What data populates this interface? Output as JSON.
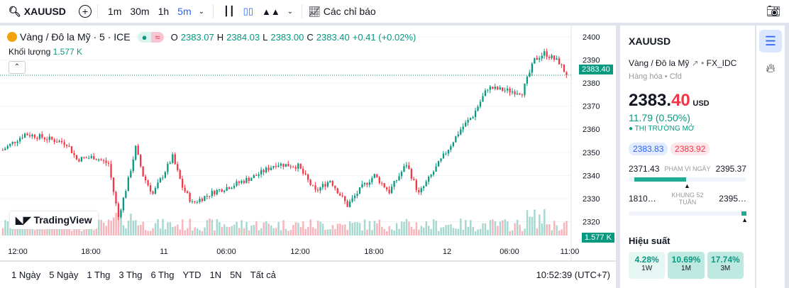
{
  "toolbar": {
    "symbol": "XAUUSD",
    "timeframes": [
      "1m",
      "30m",
      "1h",
      "5m"
    ],
    "active_timeframe": "5m",
    "indicators_label": "Các chỉ báo"
  },
  "legend": {
    "title": "Vàng / Đô la Mỹ · 5 · ICE",
    "o_label": "O",
    "o": "2383.07",
    "h_label": "H",
    "h": "2384.03",
    "l_label": "L",
    "l": "2383.00",
    "c_label": "C",
    "c": "2383.40",
    "change": "+0.41 (+0.02%)",
    "volume_label": "Khối lượng",
    "volume": "1.577 K"
  },
  "watermark": "TradingView",
  "price_label": "2383.40",
  "volume_tag": "1.577 K",
  "bottom": {
    "ranges": [
      "1 Ngày",
      "5 Ngày",
      "1 Thg",
      "3 Thg",
      "6 Thg",
      "YTD",
      "1N",
      "5N",
      "Tất cả"
    ],
    "clock": "10:52:39 (UTC+7)"
  },
  "panel": {
    "symbol": "XAUUSD",
    "name": "Vàng / Đô la Mỹ",
    "exchange": "FX_IDC",
    "category": "Hàng hóa",
    "type": "Cfd",
    "price_int": "2383.",
    "price_dec": "40",
    "currency": "USD",
    "change": "11.79 (0.50%)",
    "market_status": "THỊ TRƯỜNG MỞ",
    "bid": "2383.83",
    "ask": "2383.92",
    "day_low": "2371.43",
    "day_range_label": "PHẠM VI NGÀY",
    "day_high": "2395.37",
    "day_range_fraction": 0.5,
    "wk_low": "1810…",
    "wk_label": "KHUNG 52 TUẦN",
    "wk_high": "2395…",
    "perf_title": "Hiệu suất",
    "perf": [
      {
        "v": "4.28%",
        "p": "1W"
      },
      {
        "v": "10.69%",
        "p": "1M"
      },
      {
        "v": "17.74%",
        "p": "3M"
      }
    ]
  },
  "colors": {
    "up": "#089981",
    "down": "#f23645",
    "accent": "#2962ff"
  },
  "chart_data": {
    "type": "candlestick",
    "symbol": "XAUUSD",
    "ylim": [
      2316,
      2402
    ],
    "y_ticks": [
      2320,
      2330,
      2340,
      2350,
      2360,
      2370,
      2380,
      2390,
      2400
    ],
    "x_ticks": [
      "12:00",
      "18:00",
      "11",
      "06:00",
      "12:00",
      "18:00",
      "12",
      "06:00",
      "11:00"
    ],
    "last_price": 2383.4,
    "close_path": [
      [
        0,
        2351
      ],
      [
        9,
        2358
      ],
      [
        14,
        2357
      ],
      [
        26,
        2354
      ],
      [
        30,
        2347
      ],
      [
        37,
        2348
      ],
      [
        43,
        2345
      ],
      [
        45,
        2333
      ],
      [
        47,
        2322
      ],
      [
        51,
        2338
      ],
      [
        54,
        2352
      ],
      [
        57,
        2340
      ],
      [
        61,
        2332
      ],
      [
        69,
        2348
      ],
      [
        73,
        2335
      ],
      [
        77,
        2328
      ],
      [
        86,
        2333
      ],
      [
        94,
        2336
      ],
      [
        103,
        2340
      ],
      [
        111,
        2345
      ],
      [
        120,
        2344
      ],
      [
        127,
        2333
      ],
      [
        133,
        2338
      ],
      [
        140,
        2327
      ],
      [
        146,
        2335
      ],
      [
        151,
        2340
      ],
      [
        157,
        2333
      ],
      [
        164,
        2345
      ],
      [
        169,
        2332
      ],
      [
        174,
        2340
      ],
      [
        180,
        2350
      ],
      [
        186,
        2360
      ],
      [
        191,
        2366
      ],
      [
        197,
        2378
      ],
      [
        203,
        2377
      ],
      [
        211,
        2376
      ],
      [
        216,
        2390
      ],
      [
        220,
        2393
      ],
      [
        226,
        2389
      ],
      [
        229,
        2383.4
      ]
    ]
  }
}
